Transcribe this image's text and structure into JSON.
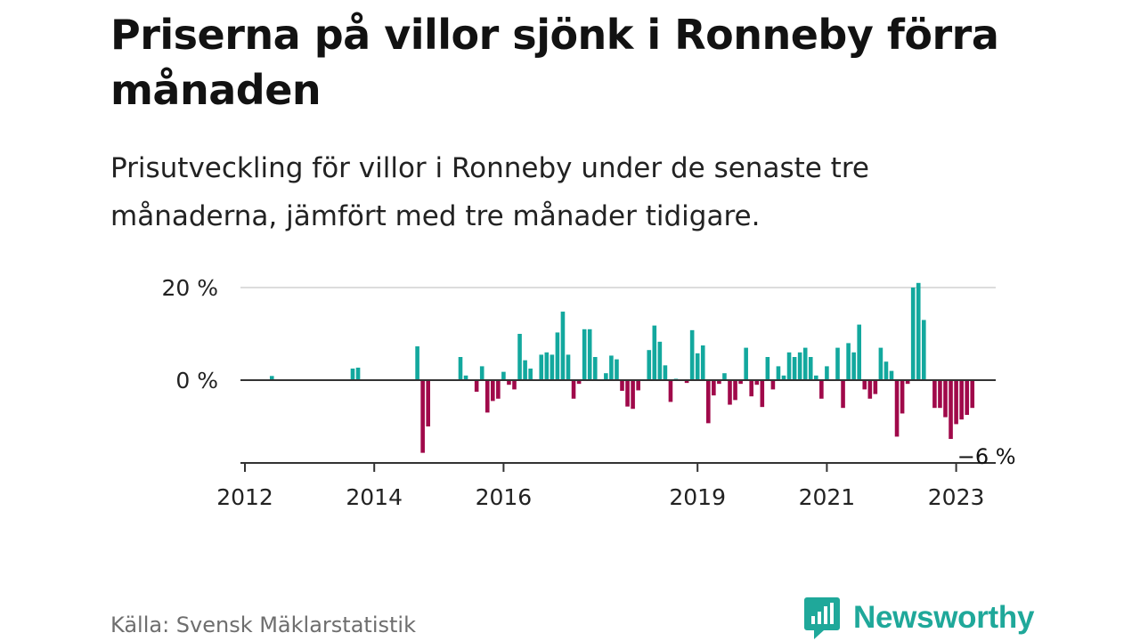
{
  "header": {
    "title": "Priserna på villor sjönk i Ronneby förra månaden",
    "subtitle": "Prisutveckling för villor i Ronneby under de senaste tre månaderna, jämfört med tre månader tidigare."
  },
  "footer": {
    "source": "Källa: Svensk Mäklarstatistik",
    "brand": "Newsworthy",
    "brand_icon": "newsworthy-chart-bubble-icon"
  },
  "colors": {
    "positive": "#13a89e",
    "negative": "#a0094a",
    "grid": "#dcdcdc",
    "zero_line": "#333333",
    "text": "#121212",
    "brand": "#1fa89a"
  },
  "chart_data": {
    "type": "bar",
    "title": "Priserna på villor sjönk i Ronneby förra månaden",
    "subtitle": "Prisutveckling för villor i Ronneby under de senaste tre månaderna, jämfört med tre månader tidigare.",
    "x_axis": {
      "type": "date",
      "range": [
        "2012-01",
        "2023-08"
      ],
      "ticks": [
        "2012",
        "2014",
        "2016",
        "2019",
        "2021",
        "2023"
      ]
    },
    "y_axis": {
      "unit": "%",
      "range": [
        -18,
        20
      ],
      "ticks": [
        {
          "value": 20,
          "label": "20 %"
        },
        {
          "value": 0,
          "label": "0 %"
        }
      ]
    },
    "grid": true,
    "annotation": {
      "date": "2023-04",
      "text": "−6 %"
    },
    "points": [
      {
        "date": "2012-06",
        "value": 0.9
      },
      {
        "date": "2013-09",
        "value": 2.5
      },
      {
        "date": "2013-10",
        "value": 2.7
      },
      {
        "date": "2014-09",
        "value": 7.3
      },
      {
        "date": "2014-10",
        "value": -15.7
      },
      {
        "date": "2014-11",
        "value": -10.0
      },
      {
        "date": "2015-05",
        "value": 5.0
      },
      {
        "date": "2015-06",
        "value": 1.0
      },
      {
        "date": "2015-08",
        "value": -2.5
      },
      {
        "date": "2015-09",
        "value": 3.0
      },
      {
        "date": "2015-10",
        "value": -7.0
      },
      {
        "date": "2015-11",
        "value": -4.5
      },
      {
        "date": "2015-12",
        "value": -4.0
      },
      {
        "date": "2016-01",
        "value": 1.8
      },
      {
        "date": "2016-02",
        "value": -1.0
      },
      {
        "date": "2016-03",
        "value": -2.0
      },
      {
        "date": "2016-04",
        "value": 10.0
      },
      {
        "date": "2016-05",
        "value": 4.3
      },
      {
        "date": "2016-06",
        "value": 2.5
      },
      {
        "date": "2016-08",
        "value": 5.5
      },
      {
        "date": "2016-09",
        "value": 6.0
      },
      {
        "date": "2016-10",
        "value": 5.5
      },
      {
        "date": "2016-11",
        "value": 10.3
      },
      {
        "date": "2016-12",
        "value": 14.8
      },
      {
        "date": "2017-01",
        "value": 5.5
      },
      {
        "date": "2017-02",
        "value": -4.0
      },
      {
        "date": "2017-03",
        "value": -0.8
      },
      {
        "date": "2017-04",
        "value": 11.0
      },
      {
        "date": "2017-05",
        "value": 11.0
      },
      {
        "date": "2017-06",
        "value": 5.0
      },
      {
        "date": "2017-08",
        "value": 1.5
      },
      {
        "date": "2017-09",
        "value": 5.3
      },
      {
        "date": "2017-10",
        "value": 4.5
      },
      {
        "date": "2017-11",
        "value": -2.3
      },
      {
        "date": "2017-12",
        "value": -5.7
      },
      {
        "date": "2018-01",
        "value": -6.2
      },
      {
        "date": "2018-02",
        "value": -2.2
      },
      {
        "date": "2018-04",
        "value": 6.5
      },
      {
        "date": "2018-05",
        "value": 11.8
      },
      {
        "date": "2018-06",
        "value": 8.3
      },
      {
        "date": "2018-07",
        "value": 3.2
      },
      {
        "date": "2018-08",
        "value": -4.7
      },
      {
        "date": "2018-09",
        "value": 0.3
      },
      {
        "date": "2018-11",
        "value": -0.6
      },
      {
        "date": "2018-12",
        "value": 10.8
      },
      {
        "date": "2019-01",
        "value": 5.8
      },
      {
        "date": "2019-02",
        "value": 7.5
      },
      {
        "date": "2019-03",
        "value": -9.3
      },
      {
        "date": "2019-04",
        "value": -3.3
      },
      {
        "date": "2019-05",
        "value": -0.8
      },
      {
        "date": "2019-06",
        "value": 1.5
      },
      {
        "date": "2019-07",
        "value": -5.3
      },
      {
        "date": "2019-08",
        "value": -4.3
      },
      {
        "date": "2019-09",
        "value": -0.8
      },
      {
        "date": "2019-10",
        "value": 7.0
      },
      {
        "date": "2019-11",
        "value": -3.5
      },
      {
        "date": "2019-12",
        "value": -1.0
      },
      {
        "date": "2020-01",
        "value": -5.8
      },
      {
        "date": "2020-02",
        "value": 5.0
      },
      {
        "date": "2020-03",
        "value": -2.0
      },
      {
        "date": "2020-04",
        "value": 3.0
      },
      {
        "date": "2020-05",
        "value": 1.0
      },
      {
        "date": "2020-06",
        "value": 6.0
      },
      {
        "date": "2020-07",
        "value": 5.0
      },
      {
        "date": "2020-08",
        "value": 6.0
      },
      {
        "date": "2020-09",
        "value": 7.0
      },
      {
        "date": "2020-10",
        "value": 5.0
      },
      {
        "date": "2020-11",
        "value": 1.0
      },
      {
        "date": "2020-12",
        "value": -4.0
      },
      {
        "date": "2021-01",
        "value": 3.0
      },
      {
        "date": "2021-03",
        "value": 7.0
      },
      {
        "date": "2021-04",
        "value": -6.0
      },
      {
        "date": "2021-05",
        "value": 8.0
      },
      {
        "date": "2021-06",
        "value": 6.0
      },
      {
        "date": "2021-07",
        "value": 12.0
      },
      {
        "date": "2021-08",
        "value": -2.0
      },
      {
        "date": "2021-09",
        "value": -4.0
      },
      {
        "date": "2021-10",
        "value": -3.0
      },
      {
        "date": "2021-11",
        "value": 7.0
      },
      {
        "date": "2021-12",
        "value": 4.0
      },
      {
        "date": "2022-01",
        "value": 2.0
      },
      {
        "date": "2022-02",
        "value": -12.2
      },
      {
        "date": "2022-03",
        "value": -7.2
      },
      {
        "date": "2022-04",
        "value": -0.8
      },
      {
        "date": "2022-05",
        "value": 20.0
      },
      {
        "date": "2022-06",
        "value": 21.0
      },
      {
        "date": "2022-07",
        "value": 13.0
      },
      {
        "date": "2022-09",
        "value": -6.0
      },
      {
        "date": "2022-10",
        "value": -6.0
      },
      {
        "date": "2022-11",
        "value": -8.0
      },
      {
        "date": "2022-12",
        "value": -12.7
      },
      {
        "date": "2023-01",
        "value": -9.5
      },
      {
        "date": "2023-02",
        "value": -8.5
      },
      {
        "date": "2023-03",
        "value": -7.5
      },
      {
        "date": "2023-04",
        "value": -6.0
      }
    ]
  }
}
